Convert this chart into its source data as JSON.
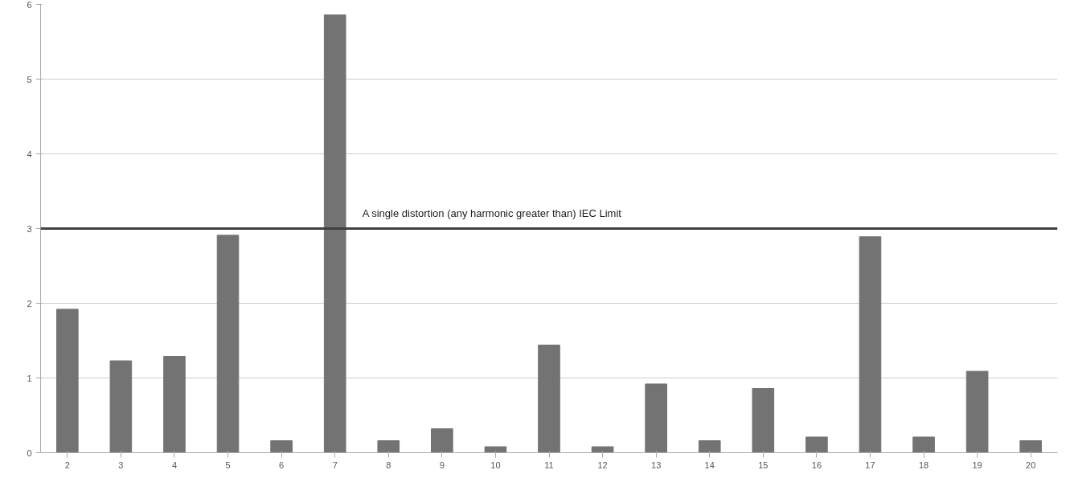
{
  "chart_data": {
    "type": "bar",
    "categories": [
      "2",
      "3",
      "4",
      "5",
      "6",
      "7",
      "8",
      "9",
      "10",
      "11",
      "12",
      "13",
      "14",
      "15",
      "16",
      "17",
      "18",
      "19",
      "20"
    ],
    "values": [
      1.92,
      1.23,
      1.29,
      2.91,
      0.16,
      5.86,
      0.16,
      0.32,
      0.08,
      1.44,
      0.08,
      0.92,
      0.16,
      0.86,
      0.21,
      2.89,
      0.21,
      1.09,
      0.16
    ],
    "color": "#737373",
    "ylim": [
      0,
      6
    ],
    "yticks": [
      0,
      1,
      2,
      3,
      4,
      5,
      6
    ],
    "grid": "y",
    "ref_lines": [
      {
        "axis": "y",
        "value": 3,
        "label": "A single distortion (any harmonic greater than) IEC Limit",
        "color": "#404040"
      }
    ]
  }
}
